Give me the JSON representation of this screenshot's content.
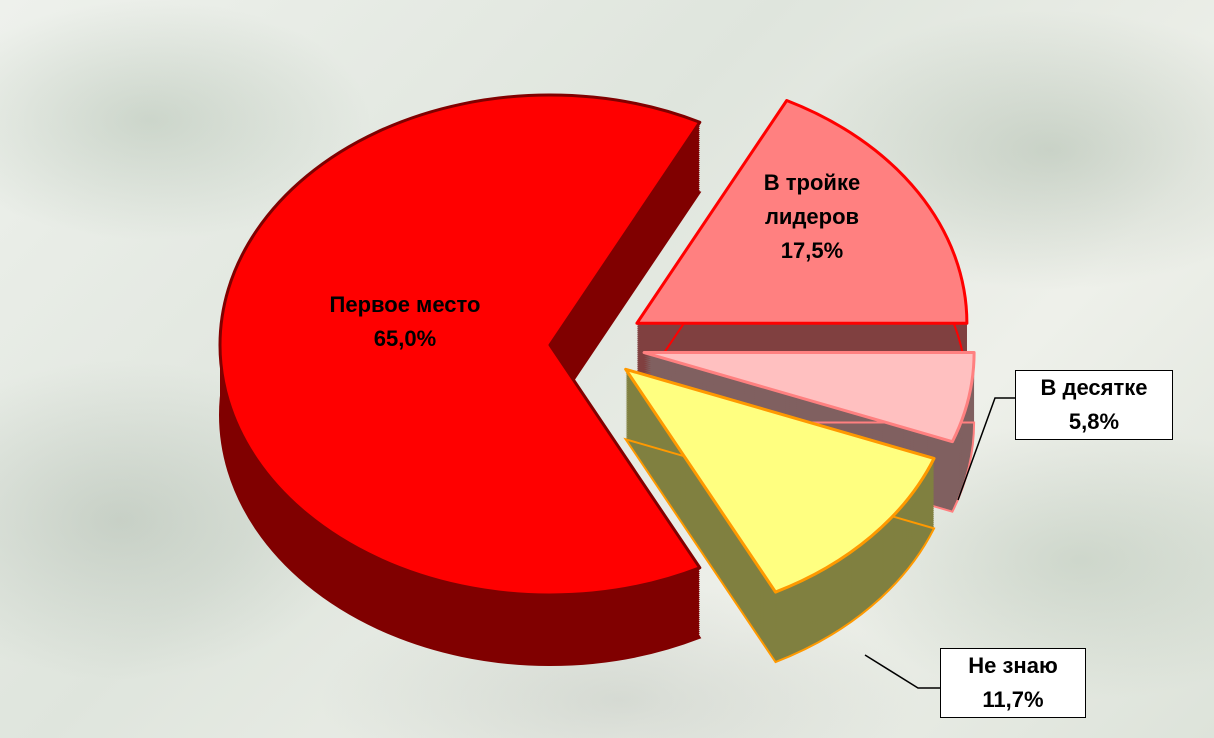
{
  "chart_data": {
    "type": "pie3d",
    "categories": [
      "Первое место",
      "В тройке лидеров",
      "В десятке",
      "Не знаю"
    ],
    "values": [
      65.0,
      17.5,
      5.8,
      11.7
    ],
    "value_labels": [
      "65,0%",
      "17,5%",
      "5,8%",
      "11,7%"
    ],
    "colors": [
      "#ff0000",
      "#ff8080",
      "#ffc0c0",
      "#ffff80"
    ],
    "border_colors": [
      "#800000",
      "#ff0000",
      "#ff8080",
      "#ff9900"
    ]
  }
}
